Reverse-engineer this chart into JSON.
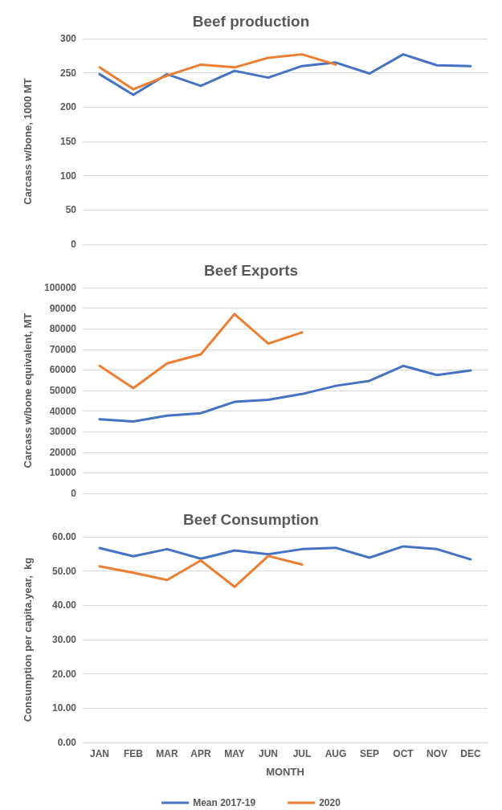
{
  "chart_data": [
    {
      "type": "line",
      "title": "Beef production",
      "ylabel": "Carcass w/bone, 1000 MT",
      "categories": [
        null,
        null,
        null,
        null,
        null,
        null,
        null,
        null,
        null,
        null,
        null,
        null
      ],
      "series": [
        {
          "color": "#4472c4",
          "values": [
            248,
            218,
            248,
            231,
            253,
            243,
            260,
            265,
            249,
            277,
            261,
            260
          ]
        },
        {
          "color": "#ed7d31",
          "values": [
            258,
            226,
            246,
            262,
            258,
            272,
            277,
            262,
            null,
            null,
            null,
            null
          ]
        }
      ],
      "ylim": [
        0,
        300
      ],
      "yticks": [
        0,
        50,
        100,
        150,
        200,
        250,
        300
      ],
      "grid": "y",
      "legend": false,
      "marker": "none"
    },
    {
      "type": "line",
      "title": "Beef Exports",
      "ylabel": "Carcass w/bone equivalent, MT",
      "categories": [
        null,
        null,
        null,
        null,
        null,
        null,
        null,
        null,
        null,
        null,
        null,
        null
      ],
      "series": [
        {
          "color": "#4472c4",
          "values": [
            36000,
            35000,
            37800,
            39000,
            44500,
            45500,
            48300,
            52300,
            54700,
            62000,
            57500,
            59800
          ]
        },
        {
          "color": "#ed7d31",
          "values": [
            62000,
            51200,
            63200,
            67600,
            87200,
            72800,
            78300,
            null,
            null,
            null,
            null,
            null
          ]
        }
      ],
      "ylim": [
        0,
        100000
      ],
      "yticks": [
        0,
        10000,
        20000,
        30000,
        40000,
        50000,
        60000,
        70000,
        80000,
        90000,
        100000
      ],
      "grid": "y",
      "legend": false,
      "marker": "none"
    },
    {
      "type": "line",
      "title": "Beef Consumption",
      "ylabel": "Consumption per capita.year,  kg",
      "xlabel": "MONTH",
      "categories": [
        "JAN",
        "FEB",
        "MAR",
        "APR",
        "MAY",
        "JUN",
        "JUL",
        "AUG",
        "SEP",
        "OCT",
        "NOV",
        "DEC"
      ],
      "series": [
        {
          "name": "Mean 2017-19",
          "color": "#4472c4",
          "values": [
            56.7,
            54.3,
            56.4,
            53.6,
            56.0,
            54.9,
            56.4,
            56.8,
            53.9,
            57.2,
            56.4,
            53.4
          ]
        },
        {
          "name": "2020",
          "color": "#ed7d31",
          "values": [
            51.4,
            49.5,
            47.4,
            53.1,
            45.4,
            54.4,
            51.9,
            null,
            null,
            null,
            null,
            null
          ]
        }
      ],
      "ylim": [
        0,
        60
      ],
      "yticks": [
        {
          "value": 0,
          "label": "0.00"
        },
        {
          "value": 10,
          "label": "10.00"
        },
        {
          "value": 20,
          "label": "20.00"
        },
        {
          "value": 30,
          "label": "30.00"
        },
        {
          "value": 40,
          "label": "40.00"
        },
        {
          "value": 50,
          "label": "50.00"
        },
        {
          "value": 60,
          "label": "60.00"
        }
      ],
      "grid": "y",
      "legend": "bottom",
      "marker": "none"
    }
  ]
}
